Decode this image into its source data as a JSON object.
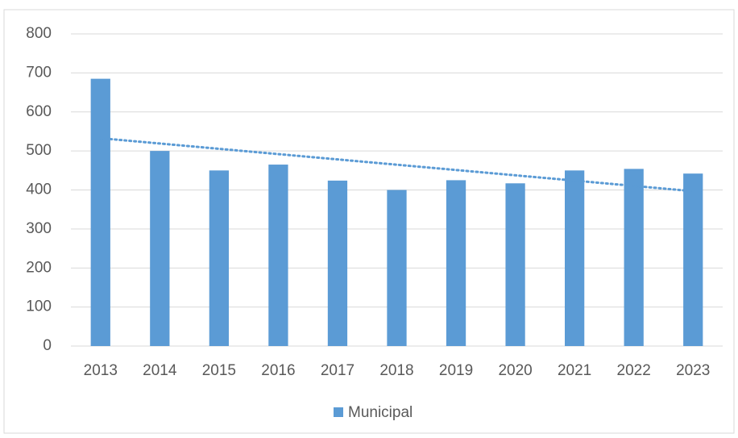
{
  "chart_data": {
    "type": "bar",
    "categories": [
      "2013",
      "2014",
      "2015",
      "2016",
      "2017",
      "2018",
      "2019",
      "2020",
      "2021",
      "2022",
      "2023"
    ],
    "series": [
      {
        "name": "Municipal",
        "color": "#5b9bd5",
        "values": [
          685,
          500,
          450,
          465,
          424,
          400,
          425,
          417,
          450,
          454,
          442
        ]
      }
    ],
    "trendline": "linear",
    "ylim": [
      0,
      800
    ],
    "yticks": [
      0,
      100,
      200,
      300,
      400,
      500,
      600,
      700,
      800
    ],
    "grid": true,
    "legend": "bottom"
  }
}
